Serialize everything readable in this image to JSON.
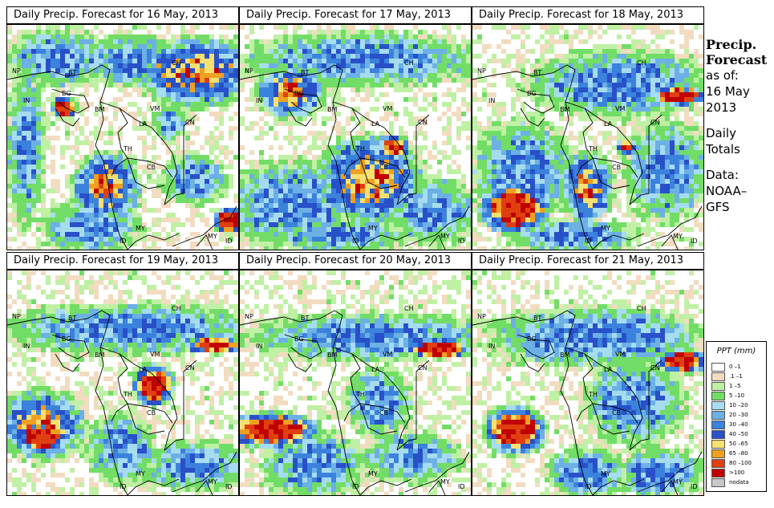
{
  "panels": [
    {
      "title": "Daily Precip. Forecast for  16 May, 2013",
      "variant": 0
    },
    {
      "title": "Daily Precip. Forecast for  17 May, 2013",
      "variant": 1
    },
    {
      "title": "Daily Precip. Forecast for  18 May, 2013",
      "variant": 2
    },
    {
      "title": "Daily Precip. Forecast for  19 May, 2013",
      "variant": 3
    },
    {
      "title": "Daily Precip. Forecast for  20 May, 2013",
      "variant": 4
    },
    {
      "title": "Daily Precip. Forecast for  21 May, 2013",
      "variant": 5
    }
  ],
  "country_labels": [
    "NP",
    "BT",
    "BG",
    "IN",
    "CH",
    "BM",
    "VM",
    "LA",
    "TH",
    "CB",
    "MY",
    "ID",
    "CN"
  ],
  "sidebar": {
    "heading_line1": "Precip.",
    "heading_line2": "Forecast",
    "asof": "as of:",
    "date_line1": "16 May",
    "date_line2": "2013",
    "daily_line1": "Daily",
    "daily_line2": "Totals",
    "data_line1": "Data:",
    "data_line2": "NOAA–",
    "data_line3": "GFS"
  },
  "legend": {
    "title": "PPT (mm)",
    "items": [
      {
        "label": "0 –1",
        "color": "#ffffff"
      },
      {
        "label": ".1 –1",
        "color": "#f2dcc0"
      },
      {
        "label": "1 –5",
        "color": "#bff0a4"
      },
      {
        "label": "5 –10",
        "color": "#72dd66"
      },
      {
        "label": "10 –20",
        "color": "#a6dcf0"
      },
      {
        "label": "20 –30",
        "color": "#6cb0e6"
      },
      {
        "label": "30 –40",
        "color": "#3b82dc"
      },
      {
        "label": "40 –50",
        "color": "#2850c8"
      },
      {
        "label": "50 –65",
        "color": "#f6e070"
      },
      {
        "label": "65 –80",
        "color": "#f0a020"
      },
      {
        "label": "80 –100",
        "color": "#e04010"
      },
      {
        "label": ">100",
        "color": "#c00000"
      },
      {
        "label": "nodata",
        "color": "#c8c8c8"
      }
    ]
  }
}
